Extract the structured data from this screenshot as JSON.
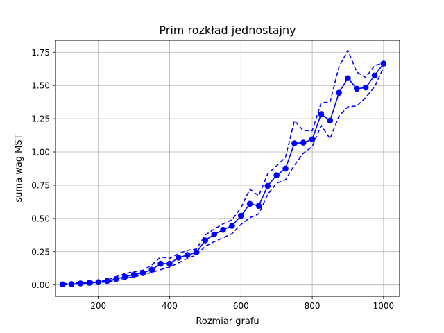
{
  "chart_data": {
    "type": "line",
    "title": "Prim rozkład jednostajny",
    "xlabel": "Rozmiar grafu",
    "ylabel": "suma wag MST",
    "xlim": [
      80,
      1045
    ],
    "ylim": [
      -0.085,
      1.84
    ],
    "x_ticks": [
      200,
      400,
      600,
      800,
      1000
    ],
    "y_ticks": [
      0.0,
      0.25,
      0.5,
      0.75,
      1.0,
      1.25,
      1.5,
      1.75
    ],
    "x_tick_labels": [
      "200",
      "400",
      "600",
      "800",
      "1000"
    ],
    "y_tick_labels": [
      "0.00",
      "0.25",
      "0.50",
      "0.75",
      "1.00",
      "1.25",
      "1.50",
      "1.75"
    ],
    "grid": true,
    "color": "#0000ff",
    "x": [
      100,
      125,
      150,
      175,
      200,
      225,
      250,
      275,
      300,
      325,
      350,
      375,
      400,
      425,
      450,
      475,
      500,
      525,
      550,
      575,
      600,
      625,
      650,
      675,
      700,
      725,
      750,
      775,
      800,
      825,
      850,
      875,
      900,
      925,
      950,
      975,
      1000
    ],
    "series": [
      {
        "role": "mean",
        "style": "solid-markers",
        "values": [
          0.005,
          0.007,
          0.012,
          0.016,
          0.021,
          0.03,
          0.045,
          0.062,
          0.078,
          0.09,
          0.115,
          0.16,
          0.16,
          0.205,
          0.225,
          0.245,
          0.335,
          0.38,
          0.415,
          0.445,
          0.52,
          0.61,
          0.595,
          0.745,
          0.825,
          0.875,
          1.065,
          1.07,
          1.095,
          1.285,
          1.235,
          1.445,
          1.555,
          1.475,
          1.485,
          1.575,
          1.665
        ]
      },
      {
        "role": "upper",
        "style": "dashed",
        "values": [
          0.01,
          0.012,
          0.017,
          0.022,
          0.028,
          0.038,
          0.062,
          0.085,
          0.1,
          0.11,
          0.15,
          0.21,
          0.2,
          0.235,
          0.26,
          0.27,
          0.375,
          0.42,
          0.46,
          0.49,
          0.58,
          0.72,
          0.67,
          0.835,
          0.895,
          0.96,
          1.235,
          1.16,
          1.16,
          1.37,
          1.375,
          1.64,
          1.765,
          1.6,
          1.56,
          1.65,
          1.67
        ]
      },
      {
        "role": "lower",
        "style": "dashed",
        "values": [
          0.002,
          0.004,
          0.008,
          0.012,
          0.016,
          0.024,
          0.035,
          0.05,
          0.062,
          0.075,
          0.095,
          0.115,
          0.135,
          0.165,
          0.2,
          0.225,
          0.29,
          0.325,
          0.355,
          0.385,
          0.455,
          0.505,
          0.535,
          0.68,
          0.765,
          0.79,
          0.9,
          0.99,
          1.04,
          1.2,
          1.1,
          1.27,
          1.34,
          1.345,
          1.41,
          1.49,
          1.635
        ]
      }
    ]
  }
}
